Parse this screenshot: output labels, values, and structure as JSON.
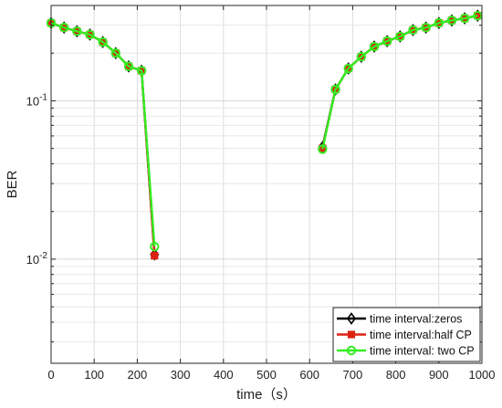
{
  "chart_data": {
    "type": "line",
    "xlabel": "time（s）",
    "ylabel": "BER",
    "xlim": [
      0,
      1000
    ],
    "ylim": [
      0.0022,
      0.4
    ],
    "y_scale": "log",
    "grid": true,
    "legend_position": "bottom-right",
    "x_ticks": [
      0,
      100,
      200,
      300,
      400,
      500,
      600,
      700,
      800,
      900,
      1000
    ],
    "y_ticks": [
      {
        "value": 0.1,
        "base": "10",
        "exp": "-1"
      },
      {
        "value": 0.01,
        "base": "10",
        "exp": "-2"
      }
    ],
    "series": [
      {
        "name": "time interval:zeros",
        "color": "#000000",
        "marker": "diamond",
        "segments": [
          {
            "x": [
              0,
              30,
              60,
              90,
              120,
              150,
              180,
              210,
              240
            ],
            "y": [
              0.31,
              0.29,
              0.275,
              0.262,
              0.235,
              0.2,
              0.165,
              0.155,
              0.0107
            ]
          },
          {
            "x": [
              630,
              660,
              690,
              720,
              750,
              780,
              810,
              840,
              870,
              900,
              930,
              960,
              990
            ],
            "y": [
              0.051,
              0.118,
              0.16,
              0.19,
              0.22,
              0.238,
              0.255,
              0.28,
              0.29,
              0.31,
              0.322,
              0.332,
              0.345
            ]
          }
        ]
      },
      {
        "name": "time interval:half CP",
        "color": "#dd2211",
        "marker": "square",
        "segments": [
          {
            "x": [
              0,
              30,
              60,
              90,
              120,
              150,
              180,
              210,
              240
            ],
            "y": [
              0.31,
              0.29,
              0.275,
              0.262,
              0.235,
              0.2,
              0.165,
              0.155,
              0.0105
            ]
          },
          {
            "x": [
              630,
              660,
              690,
              720,
              750,
              780,
              810,
              840,
              870,
              900,
              930,
              960,
              990
            ],
            "y": [
              0.05,
              0.118,
              0.16,
              0.19,
              0.22,
              0.238,
              0.255,
              0.28,
              0.29,
              0.31,
              0.322,
              0.332,
              0.345
            ]
          }
        ]
      },
      {
        "name": "time interval: two CP",
        "color": "#33ee22",
        "marker": "circle",
        "segments": [
          {
            "x": [
              0,
              30,
              60,
              90,
              120,
              150,
              180,
              210,
              240
            ],
            "y": [
              0.31,
              0.29,
              0.275,
              0.262,
              0.235,
              0.2,
              0.165,
              0.155,
              0.012
            ]
          },
          {
            "x": [
              630,
              660,
              690,
              720,
              750,
              780,
              810,
              840,
              870,
              900,
              930,
              960,
              990
            ],
            "y": [
              0.0495,
              0.118,
              0.16,
              0.19,
              0.22,
              0.238,
              0.255,
              0.28,
              0.29,
              0.31,
              0.322,
              0.332,
              0.345
            ]
          }
        ]
      }
    ]
  }
}
